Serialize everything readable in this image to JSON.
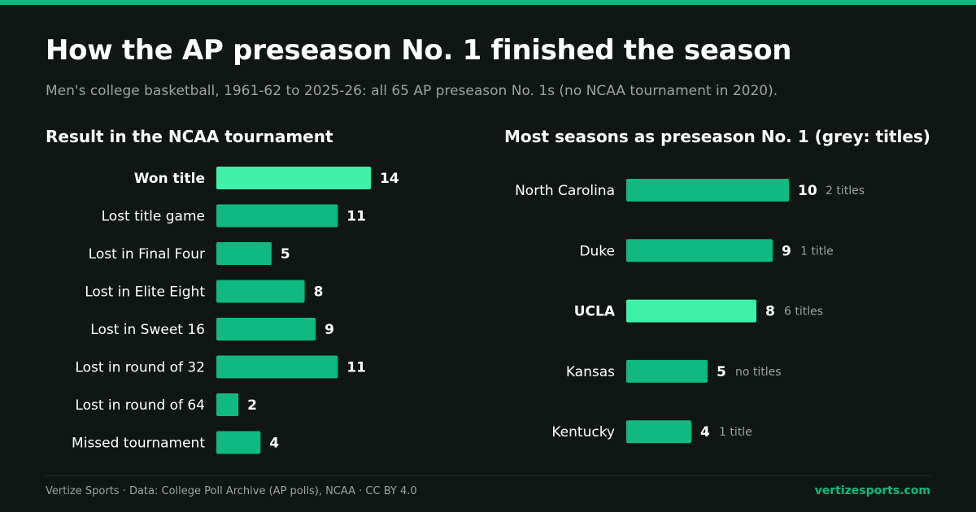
{
  "title": "How the AP preseason No. 1 finished the season",
  "subtitle": "Men's college basketball, 1961-62 to 2025-26: all 65 AP preseason No. 1s (no NCAA tournament in 2020).",
  "footer": {
    "credit": "Vertize Sports · Data: College Poll Archive (AP polls), NCAA · CC BY 4.0",
    "site": "vertizesports.com"
  },
  "colors": {
    "bar": "#10b981",
    "highlight": "#3ef0a8",
    "background": "#0f1613",
    "muted_text": "#9aa3a0"
  },
  "chart_data": [
    {
      "type": "bar",
      "orientation": "horizontal",
      "title": "Result in the NCAA tournament",
      "categories": [
        "Won title",
        "Lost title game",
        "Lost in Final Four",
        "Lost in Elite Eight",
        "Lost in Sweet 16",
        "Lost in round of 32",
        "Lost in round of 64",
        "Missed tournament"
      ],
      "values": [
        14,
        11,
        5,
        8,
        9,
        11,
        2,
        4
      ],
      "highlight": [
        "Won title"
      ]
    },
    {
      "type": "bar",
      "orientation": "horizontal",
      "title": "Most seasons as preseason No. 1 (grey: titles)",
      "categories": [
        "North Carolina",
        "Duke",
        "UCLA",
        "Kansas",
        "Kentucky"
      ],
      "values": [
        10,
        9,
        8,
        5,
        4
      ],
      "annotations": [
        "2 titles",
        "1 title",
        "6 titles",
        "no titles",
        "1 title"
      ],
      "highlight": [
        "UCLA"
      ]
    }
  ]
}
